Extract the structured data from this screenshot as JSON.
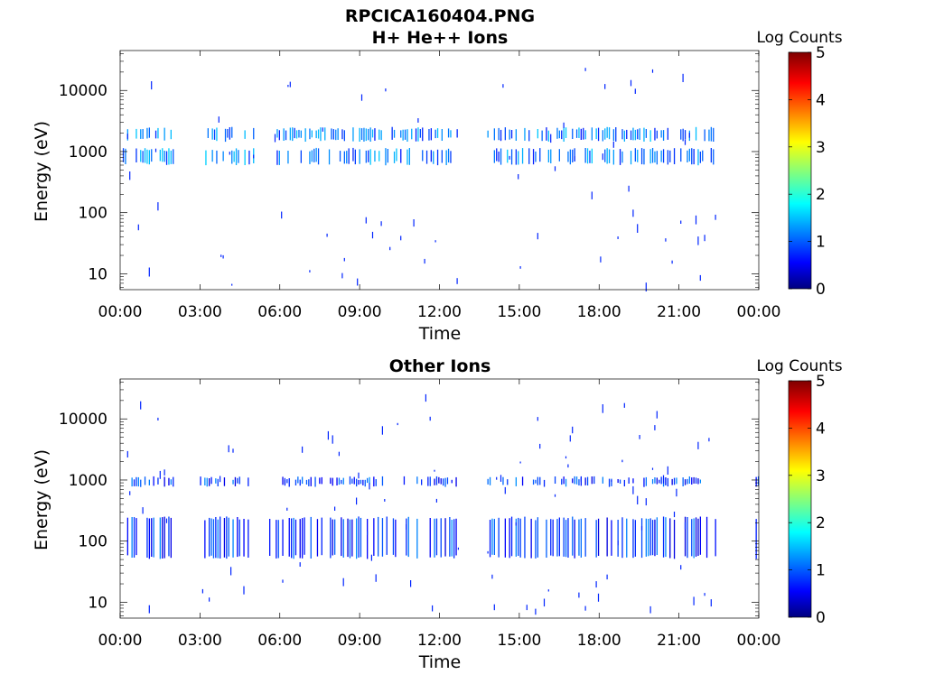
{
  "figure_title": "RPCICA160404.PNG",
  "chart_data": [
    {
      "type": "heatmap",
      "title": "H+ He++ Ions",
      "xlabel": "Time",
      "ylabel": "Energy (eV)",
      "y_scale": "log",
      "xlim_hours": [
        0,
        24
      ],
      "ylim": [
        5.5,
        45000
      ],
      "x_tick_labels": [
        "00:00",
        "03:00",
        "06:00",
        "09:00",
        "12:00",
        "15:00",
        "18:00",
        "21:00",
        "00:00"
      ],
      "x_tick_hours": [
        0,
        3,
        6,
        9,
        12,
        15,
        18,
        21,
        24
      ],
      "y_tick_labels": [
        "10",
        "100",
        "1000",
        "10000"
      ],
      "y_tick_values": [
        10,
        100,
        1000,
        10000
      ],
      "colorbar": {
        "label": "Log Counts",
        "min": 0,
        "max": 5,
        "ticks": [
          "0",
          "1",
          "2",
          "3",
          "4",
          "5"
        ]
      },
      "data_intervals_hours": [
        [
          0.1,
          2.0
        ],
        [
          3.2,
          5.0
        ],
        [
          5.8,
          12.7
        ],
        [
          13.8,
          22.4
        ]
      ],
      "band_energies_ev": [
        [
          700,
          1000
        ],
        [
          1700,
          2200
        ]
      ],
      "band_level": 1.2,
      "scattered_log_counts": 0.8
    },
    {
      "type": "heatmap",
      "title": "Other Ions",
      "xlabel": "Time",
      "ylabel": "Energy (eV)",
      "y_scale": "log",
      "xlim_hours": [
        0,
        24
      ],
      "ylim": [
        5.5,
        45000
      ],
      "x_tick_labels": [
        "00:00",
        "03:00",
        "06:00",
        "09:00",
        "12:00",
        "15:00",
        "18:00",
        "21:00",
        "00:00"
      ],
      "x_tick_hours": [
        0,
        3,
        6,
        9,
        12,
        15,
        18,
        21,
        24
      ],
      "y_tick_labels": [
        "10",
        "100",
        "1000",
        "10000"
      ],
      "y_tick_values": [
        10,
        100,
        1000,
        10000
      ],
      "colorbar": {
        "label": "Log Counts",
        "min": 0,
        "max": 5,
        "ticks": [
          "0",
          "1",
          "2",
          "3",
          "4",
          "5"
        ]
      },
      "data_intervals_hours": [
        [
          0.1,
          2.0
        ],
        [
          3.0,
          4.8
        ],
        [
          5.6,
          12.7
        ],
        [
          13.8,
          22.4
        ],
        [
          23.8,
          24.0
        ]
      ],
      "band_energies_ev": [
        [
          60,
          220
        ],
        [
          900,
          1000
        ]
      ],
      "band_level": 0.9,
      "scattered_log_counts": 0.8
    }
  ]
}
